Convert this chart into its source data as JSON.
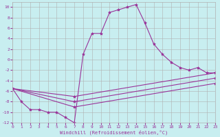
{
  "xlabel": "Windchill (Refroidissement éolien,°C)",
  "bg_color": "#c8eef0",
  "line_color": "#993399",
  "grid_color": "#b0b0b0",
  "xlim": [
    0,
    23
  ],
  "ylim": [
    -12,
    11
  ],
  "xticks": [
    0,
    1,
    2,
    3,
    4,
    5,
    6,
    7,
    8,
    9,
    10,
    11,
    12,
    13,
    14,
    15,
    16,
    17,
    18,
    19,
    20,
    21,
    22,
    23
  ],
  "yticks": [
    -12,
    -10,
    -8,
    -6,
    -4,
    -2,
    0,
    2,
    4,
    6,
    8,
    10
  ],
  "series": [
    {
      "x": [
        0,
        1,
        2,
        3,
        4,
        5,
        6,
        7,
        8,
        9,
        10,
        11,
        12,
        13,
        14,
        15,
        16,
        17,
        18,
        19,
        20,
        21,
        22,
        23
      ],
      "y": [
        -5.5,
        -8,
        -9.5,
        -9.5,
        -10,
        -10,
        -11,
        -12,
        1,
        5,
        5,
        9,
        9.5,
        10,
        10.5,
        7,
        3,
        1,
        -0.5,
        -1.5,
        -2,
        -1.5,
        -2.5,
        -2.5
      ]
    },
    {
      "x": [
        0,
        7,
        23
      ],
      "y": [
        -5.5,
        -7,
        -2.5
      ]
    },
    {
      "x": [
        0,
        7,
        23
      ],
      "y": [
        -5.5,
        -8,
        -3.5
      ]
    },
    {
      "x": [
        0,
        7,
        23
      ],
      "y": [
        -5.5,
        -9,
        -4.5
      ]
    }
  ]
}
